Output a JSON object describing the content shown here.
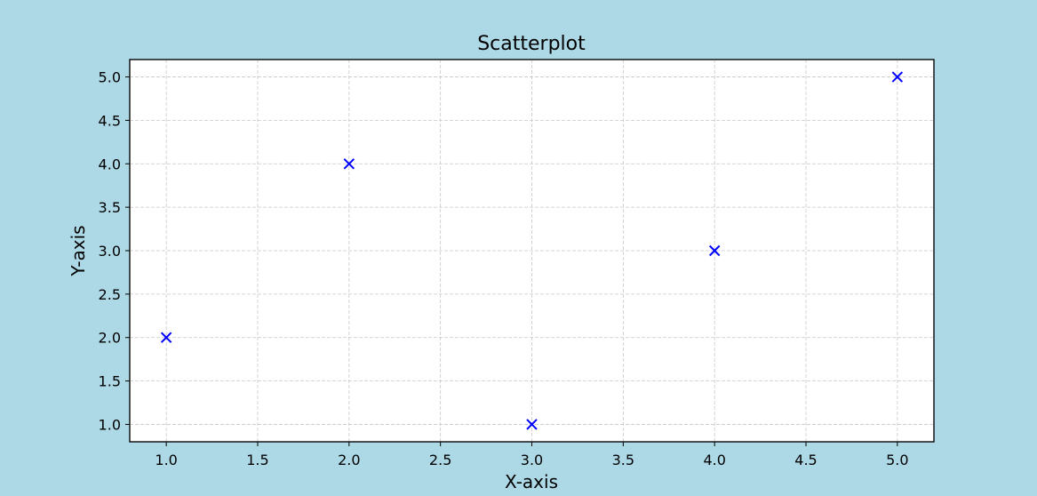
{
  "chart_data": {
    "type": "scatter",
    "title": "Scatterplot",
    "xlabel": "X-axis",
    "ylabel": "Y-axis",
    "xlim": [
      0.8,
      5.2
    ],
    "ylim": [
      0.8,
      5.2
    ],
    "xticks": [
      1.0,
      1.5,
      2.0,
      2.5,
      3.0,
      3.5,
      4.0,
      4.5,
      5.0
    ],
    "yticks": [
      1.0,
      1.5,
      2.0,
      2.5,
      3.0,
      3.5,
      4.0,
      4.5,
      5.0
    ],
    "grid": true,
    "marker": "x",
    "marker_color": "#0000ff",
    "points": [
      {
        "x": 1.0,
        "y": 2.0
      },
      {
        "x": 2.0,
        "y": 4.0
      },
      {
        "x": 3.0,
        "y": 1.0
      },
      {
        "x": 4.0,
        "y": 3.0
      },
      {
        "x": 5.0,
        "y": 5.0
      }
    ]
  }
}
